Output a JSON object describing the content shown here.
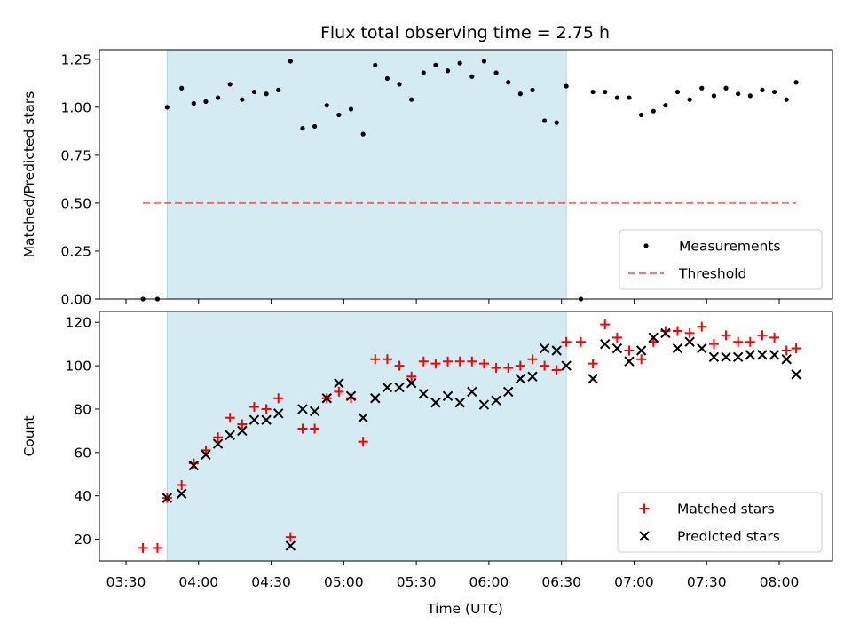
{
  "chart_data": {
    "type": "scatter",
    "title": "Flux total observing time = 2.75 h",
    "colors": {
      "band": "#add8e6",
      "measurement": "#000000",
      "threshold": "#ff0000",
      "matched": "#ff0000",
      "predicted": "#000000"
    },
    "shared_x": {
      "label": "Time (UTC)",
      "unit": "time",
      "range": [
        "03:19",
        "08:22"
      ],
      "tick_values": [
        "03:30",
        "04:00",
        "04:30",
        "05:00",
        "05:30",
        "06:00",
        "06:30",
        "07:00",
        "07:30",
        "08:00"
      ],
      "tick_labels": [
        "03:30",
        "04:00",
        "04:30",
        "05:00",
        "05:30",
        "06:00",
        "06:30",
        "07:00",
        "07:30",
        "08:00"
      ],
      "shaded_interval": [
        "03:47",
        "06:32"
      ]
    },
    "panels": [
      {
        "ylabel": "Matched/Predicted stars",
        "ylim": [
          0,
          1.3
        ],
        "yticks": [
          0.0,
          0.25,
          0.5,
          0.75,
          1.0,
          1.25
        ],
        "ytick_labels": [
          "0.00",
          "0.25",
          "0.50",
          "0.75",
          "1.00",
          "1.25"
        ],
        "legend_position": "lower right",
        "threshold": {
          "name": "Threshold",
          "value": 0.5,
          "x_range": [
            "03:37",
            "08:07"
          ],
          "style": "dashed"
        },
        "series": [
          {
            "name": "Measurements",
            "marker": "dot",
            "points": [
              [
                "03:37",
                0.0
              ],
              [
                "03:43",
                0.0
              ],
              [
                "03:47",
                1.0
              ],
              [
                "03:53",
                1.1
              ],
              [
                "03:58",
                1.02
              ],
              [
                "04:03",
                1.03
              ],
              [
                "04:08",
                1.05
              ],
              [
                "04:13",
                1.12
              ],
              [
                "04:18",
                1.04
              ],
              [
                "04:23",
                1.08
              ],
              [
                "04:28",
                1.07
              ],
              [
                "04:33",
                1.09
              ],
              [
                "04:38",
                1.24
              ],
              [
                "04:43",
                0.89
              ],
              [
                "04:48",
                0.9
              ],
              [
                "04:53",
                1.01
              ],
              [
                "04:58",
                0.96
              ],
              [
                "05:03",
                0.99
              ],
              [
                "05:08",
                0.86
              ],
              [
                "05:13",
                1.22
              ],
              [
                "05:18",
                1.15
              ],
              [
                "05:23",
                1.12
              ],
              [
                "05:28",
                1.04
              ],
              [
                "05:33",
                1.18
              ],
              [
                "05:38",
                1.22
              ],
              [
                "05:43",
                1.19
              ],
              [
                "05:48",
                1.23
              ],
              [
                "05:53",
                1.16
              ],
              [
                "05:58",
                1.24
              ],
              [
                "06:03",
                1.18
              ],
              [
                "06:08",
                1.13
              ],
              [
                "06:13",
                1.07
              ],
              [
                "06:18",
                1.09
              ],
              [
                "06:23",
                0.93
              ],
              [
                "06:28",
                0.92
              ],
              [
                "06:32",
                1.11
              ],
              [
                "06:38",
                0.0
              ],
              [
                "06:43",
                1.08
              ],
              [
                "06:48",
                1.08
              ],
              [
                "06:53",
                1.05
              ],
              [
                "06:58",
                1.05
              ],
              [
                "07:03",
                0.96
              ],
              [
                "07:08",
                0.98
              ],
              [
                "07:13",
                1.01
              ],
              [
                "07:18",
                1.08
              ],
              [
                "07:23",
                1.04
              ],
              [
                "07:28",
                1.1
              ],
              [
                "07:33",
                1.06
              ],
              [
                "07:38",
                1.1
              ],
              [
                "07:43",
                1.07
              ],
              [
                "07:48",
                1.06
              ],
              [
                "07:53",
                1.09
              ],
              [
                "07:58",
                1.08
              ],
              [
                "08:03",
                1.04
              ],
              [
                "08:07",
                1.13
              ]
            ]
          }
        ]
      },
      {
        "ylabel": "Count",
        "ylim": [
          10,
          125
        ],
        "yticks": [
          20,
          40,
          60,
          80,
          100,
          120
        ],
        "ytick_labels": [
          "20",
          "40",
          "60",
          "80",
          "100",
          "120"
        ],
        "legend_position": "lower right",
        "series": [
          {
            "name": "Matched stars",
            "marker": "plus",
            "points": [
              [
                "03:37",
                16
              ],
              [
                "03:43",
                16
              ],
              [
                "03:47",
                39
              ],
              [
                "03:53",
                45
              ],
              [
                "03:58",
                55
              ],
              [
                "04:03",
                61
              ],
              [
                "04:08",
                67
              ],
              [
                "04:13",
                76
              ],
              [
                "04:18",
                73
              ],
              [
                "04:23",
                81
              ],
              [
                "04:28",
                80
              ],
              [
                "04:33",
                85
              ],
              [
                "04:38",
                21
              ],
              [
                "04:43",
                71
              ],
              [
                "04:48",
                71
              ],
              [
                "04:53",
                85
              ],
              [
                "04:58",
                88
              ],
              [
                "05:03",
                85
              ],
              [
                "05:08",
                65
              ],
              [
                "05:13",
                103
              ],
              [
                "05:18",
                103
              ],
              [
                "05:23",
                100
              ],
              [
                "05:28",
                95
              ],
              [
                "05:33",
                102
              ],
              [
                "05:38",
                101
              ],
              [
                "05:43",
                102
              ],
              [
                "05:48",
                102
              ],
              [
                "05:53",
                102
              ],
              [
                "05:58",
                101
              ],
              [
                "06:03",
                99
              ],
              [
                "06:08",
                99
              ],
              [
                "06:13",
                100
              ],
              [
                "06:18",
                103
              ],
              [
                "06:23",
                100
              ],
              [
                "06:28",
                98
              ],
              [
                "06:32",
                111
              ],
              [
                "06:38",
                111
              ],
              [
                "06:43",
                101
              ],
              [
                "06:48",
                119
              ],
              [
                "06:53",
                113
              ],
              [
                "06:58",
                107
              ],
              [
                "07:03",
                103
              ],
              [
                "07:08",
                111
              ],
              [
                "07:13",
                116
              ],
              [
                "07:18",
                116
              ],
              [
                "07:23",
                115
              ],
              [
                "07:28",
                118
              ],
              [
                "07:33",
                110
              ],
              [
                "07:38",
                114
              ],
              [
                "07:43",
                111
              ],
              [
                "07:48",
                111
              ],
              [
                "07:53",
                114
              ],
              [
                "07:58",
                113
              ],
              [
                "08:03",
                107
              ],
              [
                "08:07",
                108
              ]
            ]
          },
          {
            "name": "Predicted stars",
            "marker": "x",
            "points": [
              [
                "03:47",
                39
              ],
              [
                "03:53",
                41
              ],
              [
                "03:58",
                54
              ],
              [
                "04:03",
                59
              ],
              [
                "04:08",
                64
              ],
              [
                "04:13",
                68
              ],
              [
                "04:18",
                70
              ],
              [
                "04:23",
                75
              ],
              [
                "04:28",
                75
              ],
              [
                "04:33",
                78
              ],
              [
                "04:38",
                17
              ],
              [
                "04:43",
                80
              ],
              [
                "04:48",
                79
              ],
              [
                "04:53",
                85
              ],
              [
                "04:58",
                92
              ],
              [
                "05:03",
                86
              ],
              [
                "05:08",
                76
              ],
              [
                "05:13",
                85
              ],
              [
                "05:18",
                90
              ],
              [
                "05:23",
                90
              ],
              [
                "05:28",
                92
              ],
              [
                "05:33",
                87
              ],
              [
                "05:38",
                83
              ],
              [
                "05:43",
                86
              ],
              [
                "05:48",
                83
              ],
              [
                "05:53",
                88
              ],
              [
                "05:58",
                82
              ],
              [
                "06:03",
                84
              ],
              [
                "06:08",
                88
              ],
              [
                "06:13",
                94
              ],
              [
                "06:18",
                95
              ],
              [
                "06:23",
                108
              ],
              [
                "06:28",
                107
              ],
              [
                "06:32",
                100
              ],
              [
                "06:43",
                94
              ],
              [
                "06:48",
                110
              ],
              [
                "06:53",
                108
              ],
              [
                "06:58",
                102
              ],
              [
                "07:03",
                107
              ],
              [
                "07:08",
                113
              ],
              [
                "07:13",
                115
              ],
              [
                "07:18",
                108
              ],
              [
                "07:23",
                111
              ],
              [
                "07:28",
                108
              ],
              [
                "07:33",
                104
              ],
              [
                "07:38",
                104
              ],
              [
                "07:43",
                104
              ],
              [
                "07:48",
                105
              ],
              [
                "07:53",
                105
              ],
              [
                "07:58",
                105
              ],
              [
                "08:03",
                103
              ],
              [
                "08:07",
                96
              ]
            ]
          }
        ]
      }
    ]
  }
}
